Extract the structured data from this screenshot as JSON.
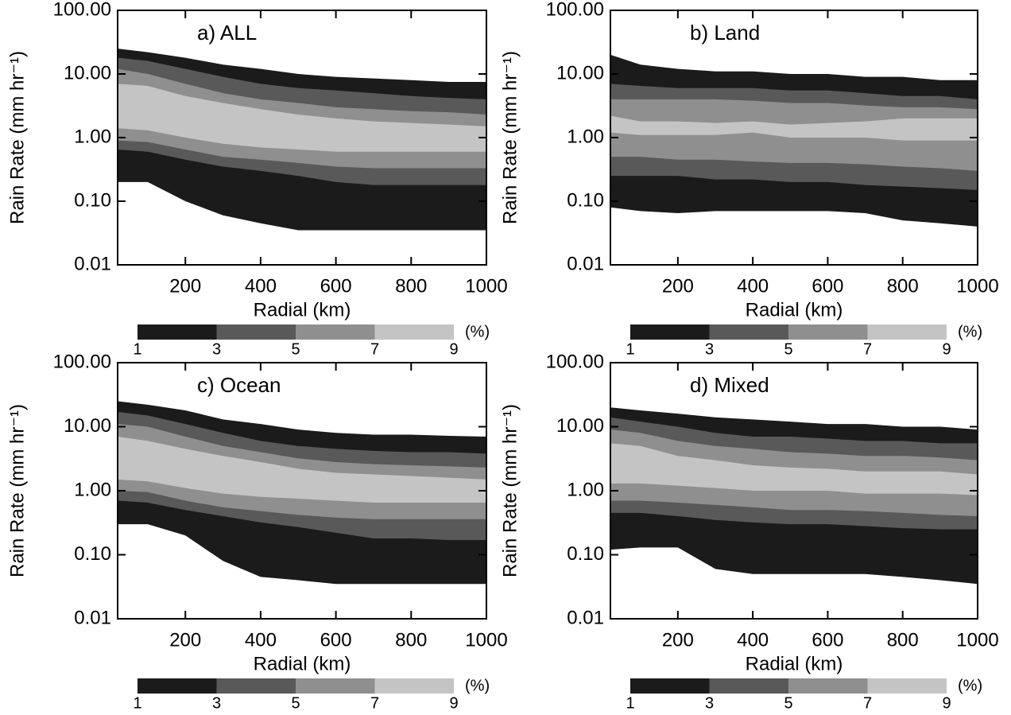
{
  "chart_data": [
    {
      "type": "contour",
      "title": "a) ALL",
      "xlabel": "Radial (km)",
      "ylabel": "Rain Rate (mm hr⁻¹)",
      "x": [
        20,
        100,
        200,
        300,
        400,
        500,
        600,
        700,
        800,
        900,
        1000
      ],
      "xlim": [
        20,
        1000
      ],
      "xticks": [
        200,
        400,
        600,
        800,
        1000
      ],
      "ylim": [
        0.01,
        100
      ],
      "log_y": true,
      "yticks": [
        0.01,
        {
          "value": 0.1,
          "label": "0.10"
        },
        {
          "value": 1,
          "label": "1.00"
        },
        {
          "value": 10,
          "label": "10.00"
        },
        {
          "value": 100,
          "label": "100.00"
        }
      ],
      "levels": [
        1,
        3,
        5,
        7,
        9
      ],
      "level_unit": "(%)",
      "colors": [
        "#1b1b1b",
        "#595959",
        "#8f8f8f",
        "#c4c4c4"
      ],
      "bands": [
        {
          "upper": [
            25,
            22,
            18,
            14,
            12,
            10,
            9,
            8.5,
            8,
            7.5,
            7.5
          ],
          "lower": [
            0.2,
            0.2,
            0.1,
            0.06,
            0.045,
            0.035,
            0.035,
            0.035,
            0.035,
            0.035,
            0.035
          ]
        },
        {
          "upper": [
            18,
            16,
            12,
            9,
            7,
            6,
            5.5,
            5,
            4.5,
            4.2,
            4
          ],
          "lower": [
            0.65,
            0.6,
            0.45,
            0.35,
            0.3,
            0.25,
            0.2,
            0.18,
            0.18,
            0.18,
            0.18
          ]
        },
        {
          "upper": [
            12,
            10,
            7,
            5,
            4,
            3.5,
            3,
            2.8,
            2.6,
            2.5,
            2.3
          ],
          "lower": [
            0.9,
            0.85,
            0.65,
            0.5,
            0.45,
            0.4,
            0.35,
            0.33,
            0.33,
            0.33,
            0.33
          ]
        },
        {
          "upper": [
            7,
            6.5,
            4.5,
            3.5,
            2.8,
            2.3,
            2,
            1.8,
            1.7,
            1.6,
            1.5
          ],
          "lower": [
            1.4,
            1.3,
            1,
            0.8,
            0.7,
            0.65,
            0.6,
            0.6,
            0.6,
            0.6,
            0.6
          ]
        }
      ]
    },
    {
      "type": "contour",
      "title": "b) Land",
      "xlabel": "Radial (km)",
      "ylabel": "Rain Rate (mm hr⁻¹)",
      "x": [
        20,
        100,
        200,
        300,
        400,
        500,
        600,
        700,
        800,
        900,
        1000
      ],
      "xlim": [
        20,
        1000
      ],
      "xticks": [
        200,
        400,
        600,
        800,
        1000
      ],
      "ylim": [
        0.01,
        100
      ],
      "log_y": true,
      "yticks": [
        0.01,
        {
          "value": 0.1,
          "label": "0.10"
        },
        {
          "value": 1,
          "label": "1.00"
        },
        {
          "value": 10,
          "label": "10.00"
        },
        {
          "value": 100,
          "label": "100.00"
        }
      ],
      "levels": [
        1,
        3,
        5,
        7,
        9
      ],
      "level_unit": "(%)",
      "colors": [
        "#1b1b1b",
        "#595959",
        "#8f8f8f",
        "#c4c4c4"
      ],
      "bands": [
        {
          "upper": [
            20,
            14,
            12,
            11,
            11,
            10,
            10,
            9,
            9,
            8,
            8
          ],
          "lower": [
            0.08,
            0.07,
            0.065,
            0.07,
            0.07,
            0.07,
            0.07,
            0.065,
            0.05,
            0.045,
            0.04
          ]
        },
        {
          "upper": [
            7,
            6.5,
            6,
            6,
            6,
            5.5,
            5.5,
            5,
            4.5,
            4.5,
            4
          ],
          "lower": [
            0.25,
            0.25,
            0.25,
            0.22,
            0.22,
            0.2,
            0.2,
            0.18,
            0.17,
            0.16,
            0.15
          ]
        },
        {
          "upper": [
            4,
            4,
            4,
            4,
            3.8,
            3.5,
            3.5,
            3.2,
            3,
            3,
            2.8
          ],
          "lower": [
            0.5,
            0.5,
            0.45,
            0.45,
            0.42,
            0.4,
            0.4,
            0.38,
            0.35,
            0.33,
            0.3
          ]
        },
        {
          "upper": [
            2.2,
            1.8,
            1.8,
            1.7,
            1.8,
            1.6,
            1.7,
            1.8,
            2,
            2,
            2
          ],
          "lower": [
            1.2,
            1.1,
            1.1,
            1.1,
            1.2,
            1,
            1,
            1,
            0.9,
            0.9,
            0.9
          ]
        }
      ]
    },
    {
      "type": "contour",
      "title": "c) Ocean",
      "xlabel": "Radial (km)",
      "ylabel": "Rain Rate (mm hr⁻¹)",
      "x": [
        20,
        100,
        200,
        300,
        400,
        500,
        600,
        700,
        800,
        900,
        1000
      ],
      "xlim": [
        20,
        1000
      ],
      "xticks": [
        200,
        400,
        600,
        800,
        1000
      ],
      "ylim": [
        0.01,
        100
      ],
      "log_y": true,
      "yticks": [
        0.01,
        {
          "value": 0.1,
          "label": "0.10"
        },
        {
          "value": 1,
          "label": "1.00"
        },
        {
          "value": 10,
          "label": "10.00"
        },
        {
          "value": 100,
          "label": "100.00"
        }
      ],
      "levels": [
        1,
        3,
        5,
        7,
        9
      ],
      "level_unit": "(%)",
      "colors": [
        "#1b1b1b",
        "#595959",
        "#8f8f8f",
        "#c4c4c4"
      ],
      "bands": [
        {
          "upper": [
            25,
            22,
            18,
            13,
            11,
            9,
            8,
            7.5,
            7.5,
            7.2,
            7
          ],
          "lower": [
            0.3,
            0.3,
            0.2,
            0.08,
            0.045,
            0.04,
            0.035,
            0.035,
            0.035,
            0.035,
            0.035
          ]
        },
        {
          "upper": [
            17,
            15,
            11,
            8,
            6,
            5,
            4.5,
            4.2,
            4,
            4,
            3.8
          ],
          "lower": [
            0.7,
            0.65,
            0.5,
            0.4,
            0.32,
            0.27,
            0.22,
            0.18,
            0.18,
            0.17,
            0.17
          ]
        },
        {
          "upper": [
            11,
            10,
            7,
            5,
            4,
            3.2,
            2.8,
            2.6,
            2.5,
            2.4,
            2.3
          ],
          "lower": [
            1,
            0.95,
            0.7,
            0.55,
            0.48,
            0.42,
            0.38,
            0.36,
            0.36,
            0.36,
            0.36
          ]
        },
        {
          "upper": [
            7,
            6,
            4.5,
            3.5,
            2.8,
            2.2,
            1.9,
            1.8,
            1.7,
            1.6,
            1.5
          ],
          "lower": [
            1.5,
            1.4,
            1.1,
            0.9,
            0.8,
            0.75,
            0.7,
            0.65,
            0.65,
            0.65,
            0.65
          ]
        }
      ]
    },
    {
      "type": "contour",
      "title": "d) Mixed",
      "xlabel": "Radial (km)",
      "ylabel": "Rain Rate (mm hr⁻¹)",
      "x": [
        20,
        100,
        200,
        300,
        400,
        500,
        600,
        700,
        800,
        900,
        1000
      ],
      "xlim": [
        20,
        1000
      ],
      "xticks": [
        200,
        400,
        600,
        800,
        1000
      ],
      "ylim": [
        0.01,
        100
      ],
      "log_y": true,
      "yticks": [
        0.01,
        {
          "value": 0.1,
          "label": "0.10"
        },
        {
          "value": 1,
          "label": "1.00"
        },
        {
          "value": 10,
          "label": "10.00"
        },
        {
          "value": 100,
          "label": "100.00"
        }
      ],
      "levels": [
        1,
        3,
        5,
        7,
        9
      ],
      "level_unit": "(%)",
      "colors": [
        "#1b1b1b",
        "#595959",
        "#8f8f8f",
        "#c4c4c4"
      ],
      "bands": [
        {
          "upper": [
            20,
            18,
            16,
            14,
            13,
            12,
            11,
            11,
            10,
            10,
            9
          ],
          "lower": [
            0.12,
            0.13,
            0.13,
            0.06,
            0.05,
            0.05,
            0.05,
            0.05,
            0.045,
            0.04,
            0.035
          ]
        },
        {
          "upper": [
            14,
            12,
            10,
            8,
            7,
            7,
            6.5,
            6,
            6,
            5.5,
            5.5
          ],
          "lower": [
            0.45,
            0.45,
            0.4,
            0.35,
            0.32,
            0.3,
            0.3,
            0.28,
            0.26,
            0.25,
            0.25
          ]
        },
        {
          "upper": [
            9,
            8,
            6,
            5,
            4.5,
            4,
            3.8,
            3.5,
            3.5,
            3.3,
            3
          ],
          "lower": [
            0.7,
            0.7,
            0.65,
            0.6,
            0.55,
            0.5,
            0.5,
            0.48,
            0.45,
            0.42,
            0.4
          ]
        },
        {
          "upper": [
            5.5,
            5,
            3.5,
            3,
            2.5,
            2.3,
            2.2,
            2,
            2,
            2,
            1.8
          ],
          "lower": [
            1.3,
            1.3,
            1.2,
            1.1,
            1,
            1,
            1,
            0.9,
            0.9,
            0.9,
            0.85
          ]
        }
      ]
    }
  ]
}
